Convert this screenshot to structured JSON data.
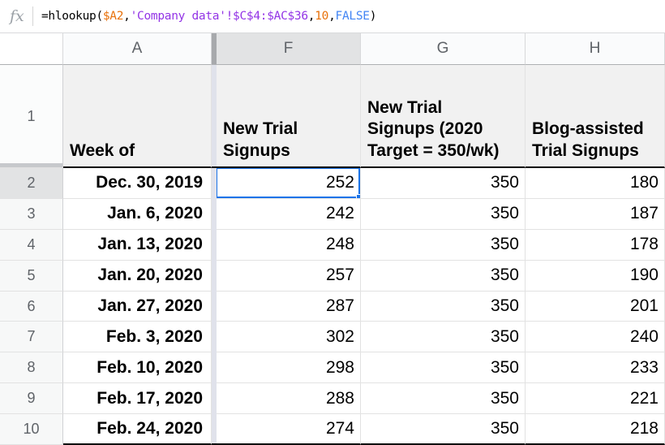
{
  "formula_bar": {
    "fx_label": "fx",
    "formula_full": "=hlookup($A2,'Company data'!$C$4:$AC$36,10,FALSE)",
    "formula_segments": [
      {
        "text": "=hlookup(",
        "color": "#000000"
      },
      {
        "text": "$A2",
        "color": "#e8710a"
      },
      {
        "text": ",",
        "color": "#000000"
      },
      {
        "text": "'Company data'!$C$4:$AC$36",
        "color": "#9334e6"
      },
      {
        "text": ",",
        "color": "#000000"
      },
      {
        "text": "10",
        "color": "#e8710a"
      },
      {
        "text": ",",
        "color": "#000000"
      },
      {
        "text": "FALSE",
        "color": "#4285f4"
      },
      {
        "text": ")",
        "color": "#000000"
      }
    ]
  },
  "column_headers": [
    {
      "letter": "A",
      "selected": false
    },
    {
      "letter": "F",
      "selected": true
    },
    {
      "letter": "G",
      "selected": false
    },
    {
      "letter": "H",
      "selected": false
    }
  ],
  "header_row": {
    "row_num": "1",
    "week_of_label": "Week of",
    "f_label": "New Trial\nSignups",
    "g_label": "New Trial\nSignups (2020\nTarget = 350/wk)",
    "h_label": "Blog-assisted\nTrial Signups"
  },
  "rows": [
    {
      "row_num": "2",
      "week_of": "Dec. 30, 2019",
      "new_trial_signups": "252",
      "target_2020": "350",
      "blog_assisted": "180",
      "selected": true
    },
    {
      "row_num": "3",
      "week_of": "Jan. 6, 2020",
      "new_trial_signups": "242",
      "target_2020": "350",
      "blog_assisted": "187",
      "selected": false
    },
    {
      "row_num": "4",
      "week_of": "Jan. 13, 2020",
      "new_trial_signups": "248",
      "target_2020": "350",
      "blog_assisted": "178",
      "selected": false
    },
    {
      "row_num": "5",
      "week_of": "Jan. 20, 2020",
      "new_trial_signups": "257",
      "target_2020": "350",
      "blog_assisted": "190",
      "selected": false
    },
    {
      "row_num": "6",
      "week_of": "Jan. 27, 2020",
      "new_trial_signups": "287",
      "target_2020": "350",
      "blog_assisted": "201",
      "selected": false
    },
    {
      "row_num": "7",
      "week_of": "Feb. 3, 2020",
      "new_trial_signups": "302",
      "target_2020": "350",
      "blog_assisted": "240",
      "selected": false
    },
    {
      "row_num": "8",
      "week_of": "Feb. 10, 2020",
      "new_trial_signups": "298",
      "target_2020": "350",
      "blog_assisted": "233",
      "selected": false
    },
    {
      "row_num": "9",
      "week_of": "Feb. 17, 2020",
      "new_trial_signups": "288",
      "target_2020": "350",
      "blog_assisted": "221",
      "selected": false
    },
    {
      "row_num": "10",
      "week_of": "Feb. 24, 2020",
      "new_trial_signups": "274",
      "target_2020": "350",
      "blog_assisted": "218",
      "selected": false
    }
  ],
  "selection": {
    "active_cell": "F2",
    "active_value": "252",
    "accent_color": "#1a73e8"
  }
}
